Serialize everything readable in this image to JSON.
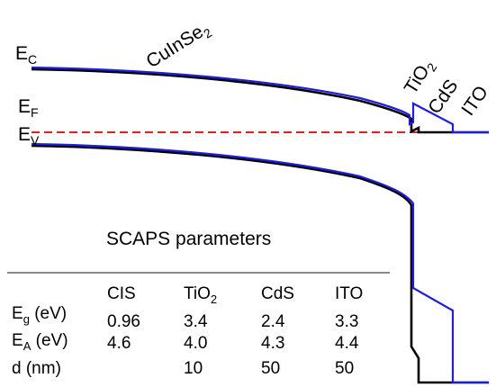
{
  "band_labels": {
    "ec": {
      "main": "E",
      "sub": "C"
    },
    "ef": {
      "main": "E",
      "sub": "F"
    },
    "ev": {
      "main": "E",
      "sub": "V"
    }
  },
  "layer_labels": {
    "cis": {
      "main": "CuInSe",
      "sub": "2"
    },
    "tio2": {
      "main": "TiO",
      "sub": "2"
    },
    "cds": "CdS",
    "ito": "ITO"
  },
  "table": {
    "title": "SCAPS parameters",
    "columns": [
      {
        "main": "CIS",
        "sub": ""
      },
      {
        "main": "TiO",
        "sub": "2"
      },
      {
        "main": "CdS",
        "sub": ""
      },
      {
        "main": "ITO",
        "sub": ""
      }
    ],
    "rows": [
      {
        "label": {
          "main": "E",
          "sub": "g",
          "rest": " (eV)"
        },
        "values": [
          "0.96",
          "3.4",
          "2.4",
          "3.3"
        ]
      },
      {
        "label": {
          "main": "E",
          "sub": "A",
          "rest": " (eV)"
        },
        "values": [
          "4.6",
          "4.0",
          "4.3",
          "4.4"
        ]
      },
      {
        "label": {
          "main": "d (nm)",
          "sub": "",
          "rest": ""
        },
        "values": [
          "",
          "10",
          "50",
          "50"
        ]
      }
    ]
  },
  "colors": {
    "black_curve": "#000000",
    "blue_curve": "#1f1fd6",
    "fermi_line": "#e02020"
  }
}
